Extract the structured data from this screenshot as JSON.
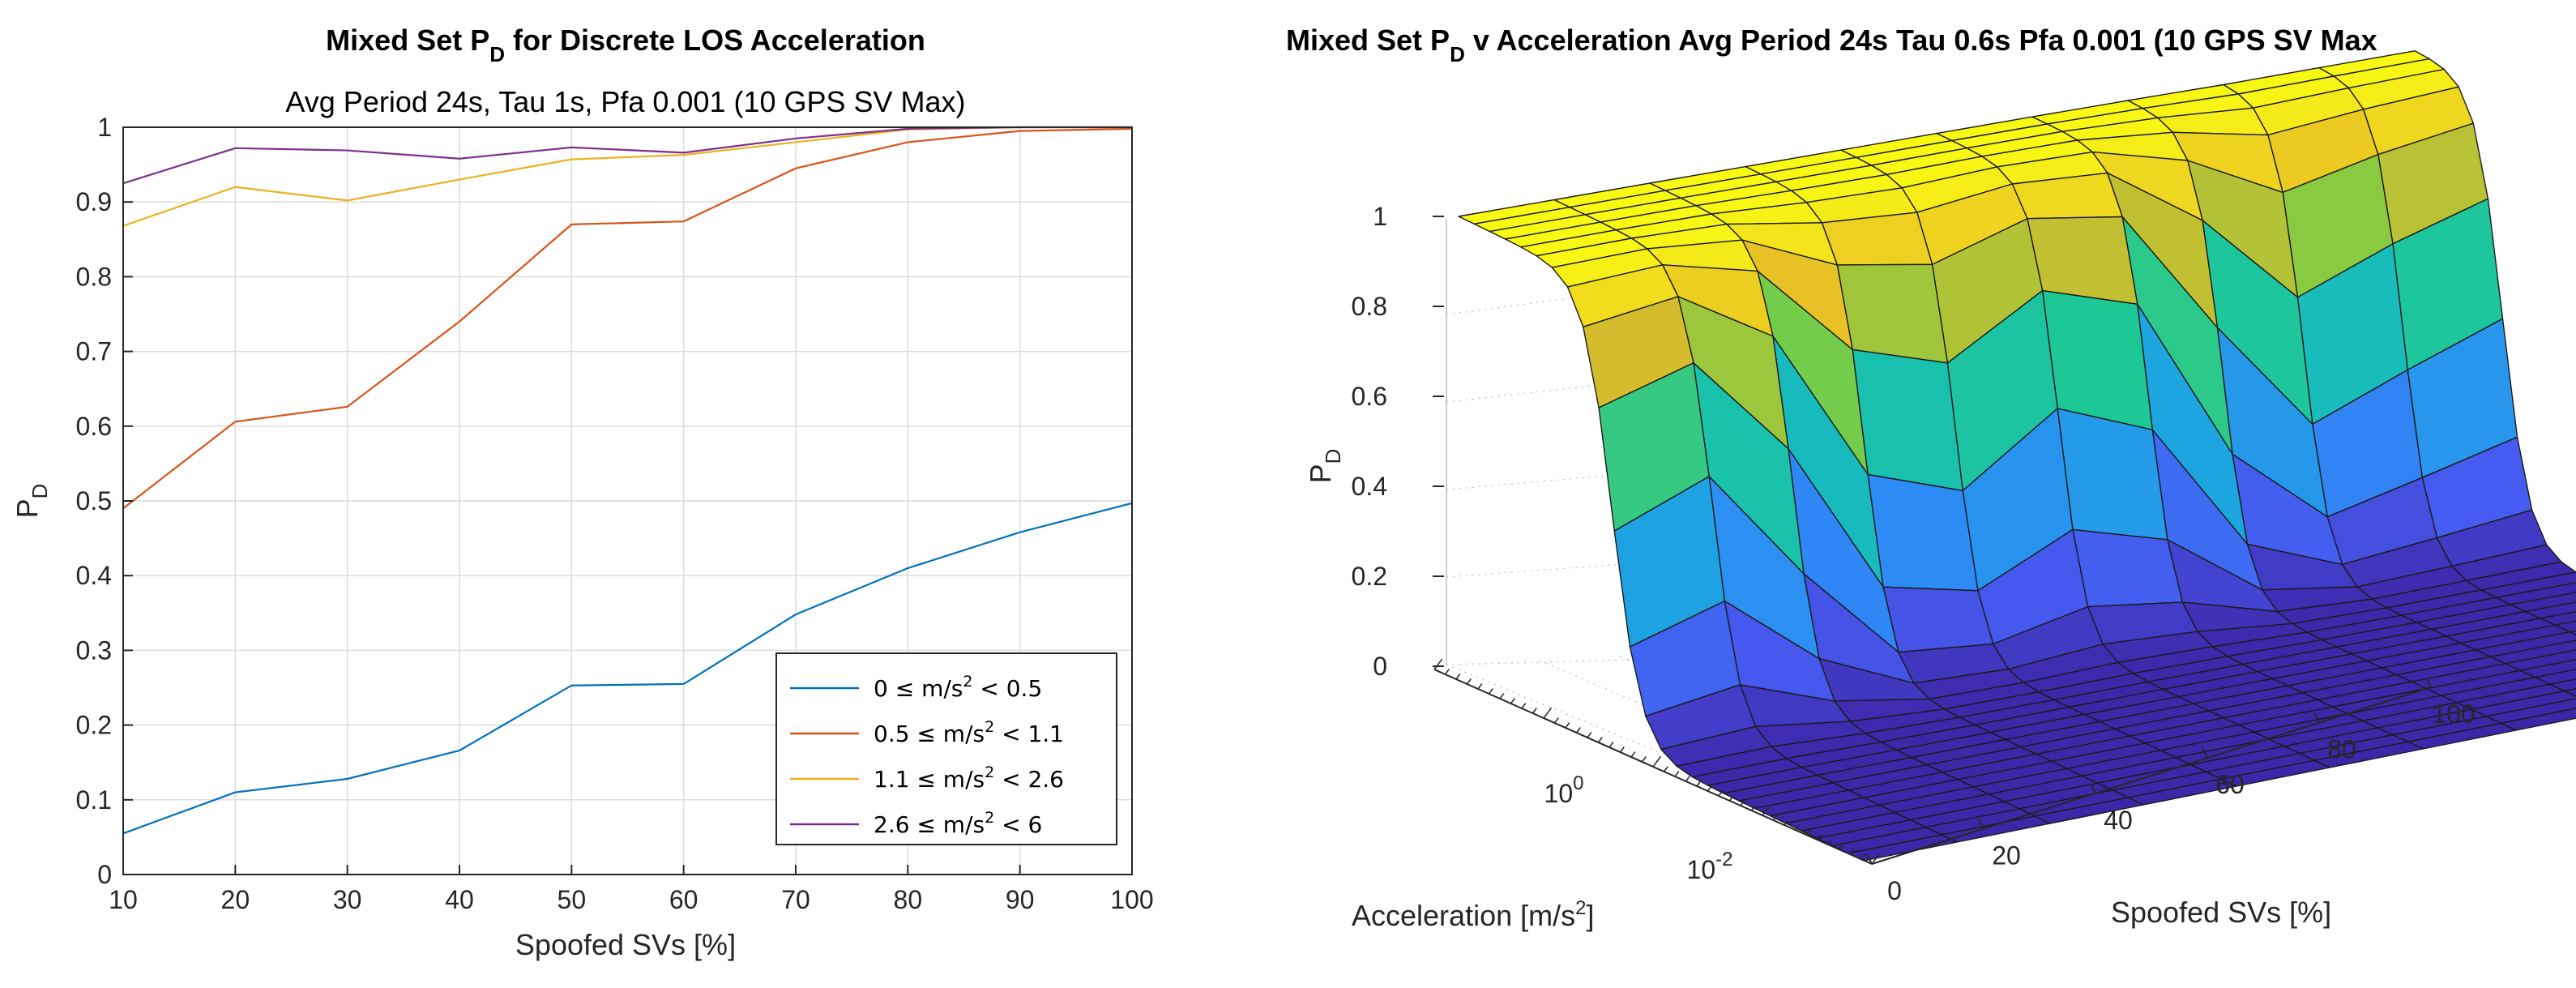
{
  "chart_data": [
    {
      "type": "line",
      "title": "Mixed Set P_D for Discrete LOS Acceleration",
      "title_main": "Mixed Set P",
      "title_sub": "D",
      "title_rest": " for Discrete LOS Acceleration",
      "subtitle": "Avg Period 24s, Tau 1s, Pfa 0.001 (10 GPS SV Max)",
      "xlabel": "Spoofed SVs [%]",
      "ylabel_main": "P",
      "ylabel_sub": "D",
      "x": [
        10,
        20,
        30,
        40,
        50,
        60,
        70,
        80,
        90,
        100
      ],
      "xlim": [
        10,
        100
      ],
      "ylim": [
        0,
        1
      ],
      "xticks": [
        10,
        20,
        30,
        40,
        50,
        60,
        70,
        80,
        90,
        100
      ],
      "yticks": [
        0,
        0.1,
        0.2,
        0.3,
        0.4,
        0.5,
        0.6,
        0.7,
        0.8,
        0.9,
        1
      ],
      "yticklabels": [
        "0",
        "0.1",
        "0.2",
        "0.3",
        "0.4",
        "0.5",
        "0.6",
        "0.7",
        "0.8",
        "0.9",
        "1"
      ],
      "grid": true,
      "legend_position": "bottom-right",
      "series": [
        {
          "name": "0 ≤ m/s² < 0.5",
          "lo": "0",
          "hi": "0.5",
          "color": "#0072bd",
          "values": [
            0.055,
            0.11,
            0.128,
            0.166,
            0.253,
            0.255,
            0.348,
            0.41,
            0.458,
            0.497
          ]
        },
        {
          "name": "0.5 ≤ m/s² < 1.1",
          "lo": "0.5",
          "hi": "1.1",
          "color": "#d95319",
          "values": [
            0.49,
            0.606,
            0.626,
            0.74,
            0.87,
            0.874,
            0.945,
            0.98,
            0.995,
            0.998
          ]
        },
        {
          "name": "1.1 ≤ m/s² < 2.6",
          "lo": "1.1",
          "hi": "2.6",
          "color": "#edb120",
          "values": [
            0.868,
            0.92,
            0.902,
            0.93,
            0.957,
            0.963,
            0.98,
            0.997,
            1.0,
            1.0
          ]
        },
        {
          "name": "2.6 ≤ m/s² < 6",
          "lo": "2.6",
          "hi": "6",
          "color": "#7e2f8e",
          "values": [
            0.925,
            0.972,
            0.969,
            0.958,
            0.973,
            0.966,
            0.985,
            0.998,
            1.0,
            1.0
          ]
        }
      ]
    },
    {
      "type": "surface",
      "title_main": "Mixed Set P",
      "title_sub": "D",
      "title_rest": " v Acceleration Avg Period 24s Tau 0.6s Pfa 0.001 (10 GPS SV Max",
      "xlabel": "Spoofed SVs [%]",
      "ylabel_main": "Acceleration [m/s",
      "ylabel_sup": "2",
      "ylabel_close": "]",
      "zlabel_main": "P",
      "zlabel_sub": "D",
      "x_ticks": [
        "0",
        "20",
        "40",
        "60",
        "80",
        "100"
      ],
      "y_ticks": [
        "10",
        "10"
      ],
      "y_tick_exps": [
        "0",
        "-2"
      ],
      "z_ticks": [
        "0",
        "0.2",
        "0.4",
        "0.6",
        "0.8",
        "1"
      ],
      "zlim": [
        0,
        1
      ],
      "spoofed_pct": [
        0,
        10,
        20,
        30,
        40,
        50,
        60,
        70,
        80,
        90,
        100
      ],
      "colormap": "parula",
      "description": "P_D ~ 0 at low acceleration, rising steeply to ~1 at higher acceleration; transition shifts to lower acceleration as spoofed % increases"
    }
  ]
}
